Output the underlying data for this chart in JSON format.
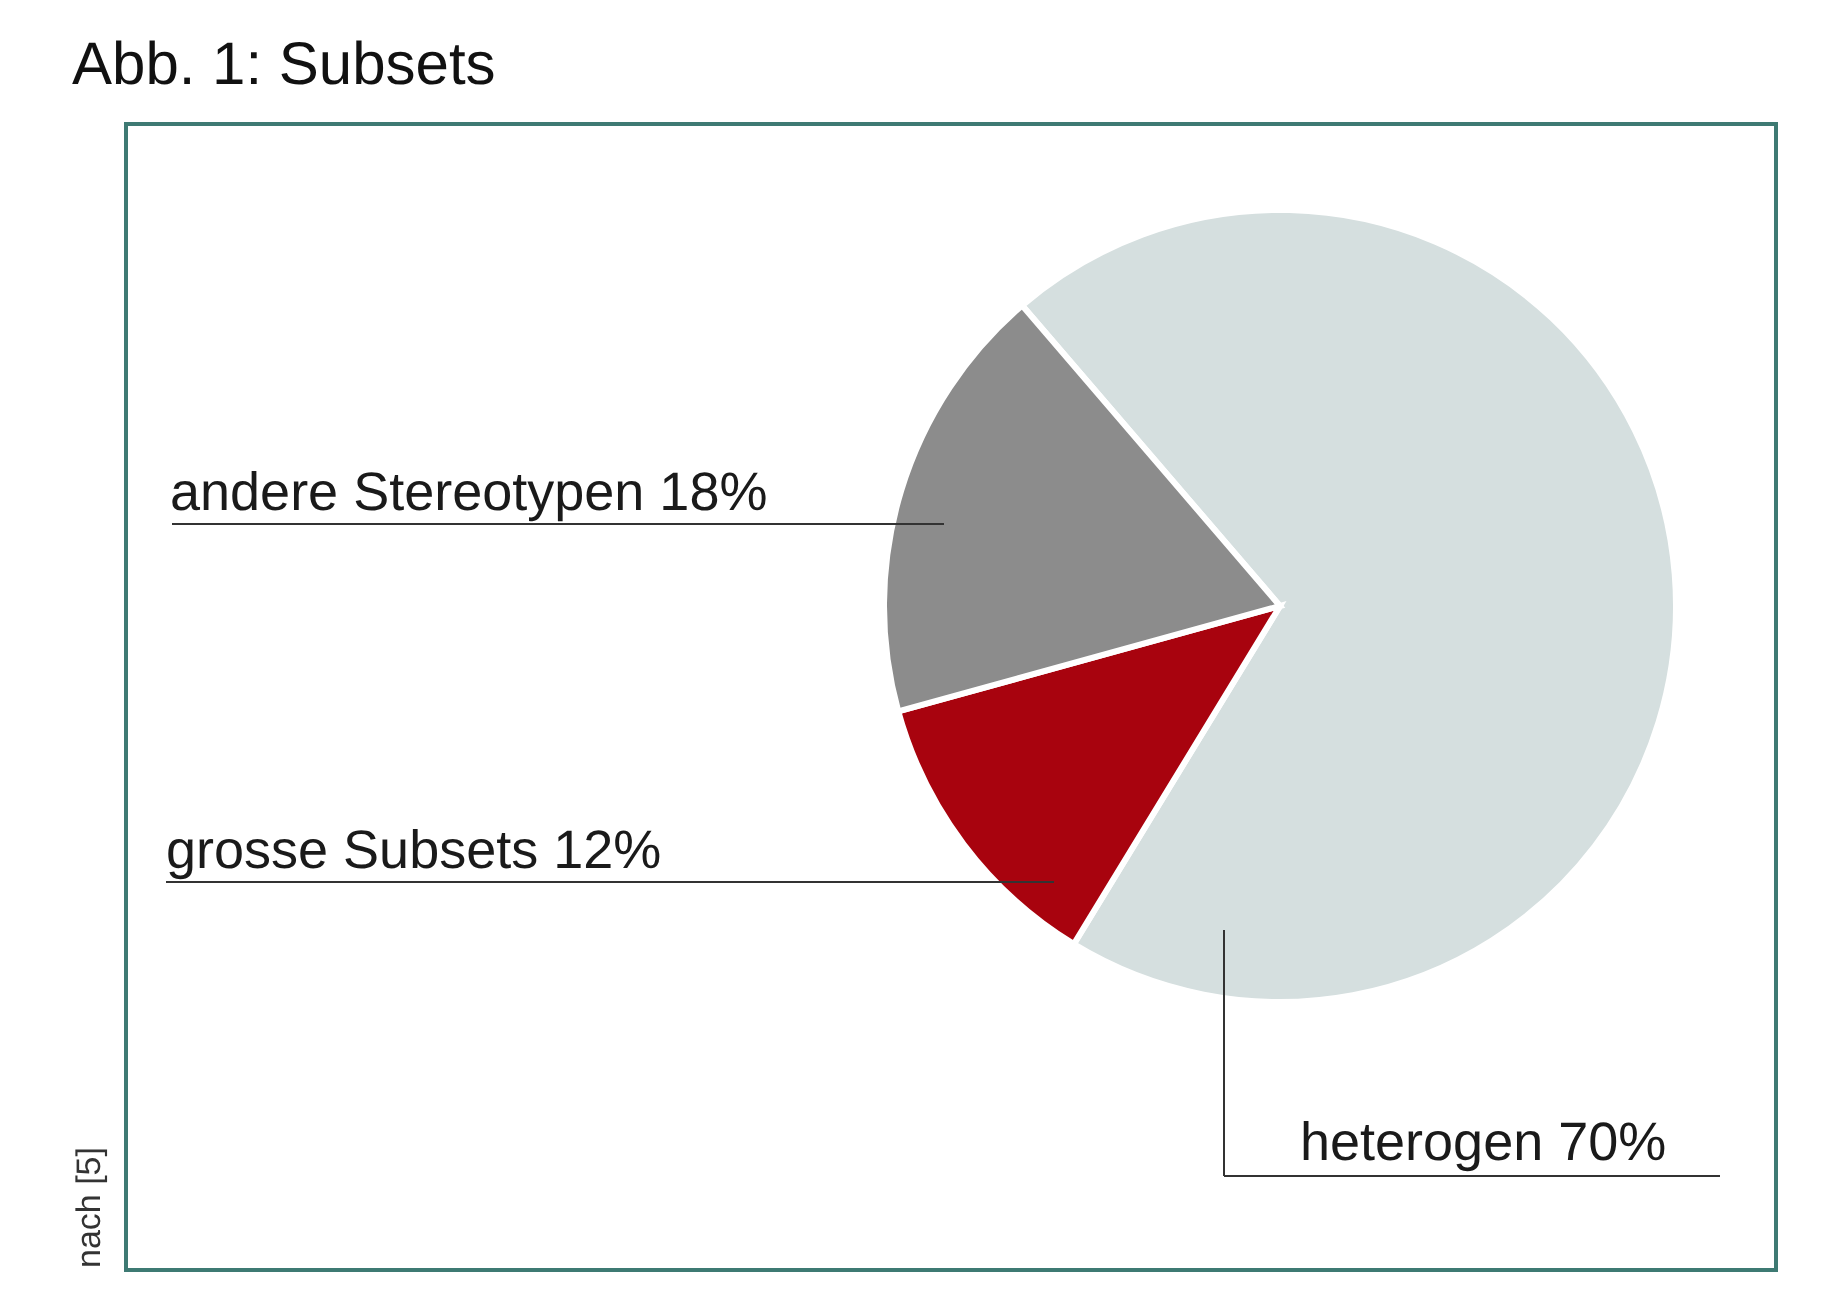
{
  "chart_data": {
    "type": "pie",
    "title": "Abb. 1: Subsets",
    "categories": [
      "heterogen",
      "grosse Subsets",
      "andere Stereotypen"
    ],
    "values": [
      70,
      12,
      18
    ],
    "value_labels": [
      "70%",
      "12%",
      "18%"
    ],
    "colors": [
      "#d5dfdf",
      "#a8030e",
      "#8c8c8c"
    ],
    "annotations": [
      "nach [5]"
    ],
    "legend": false
  }
}
